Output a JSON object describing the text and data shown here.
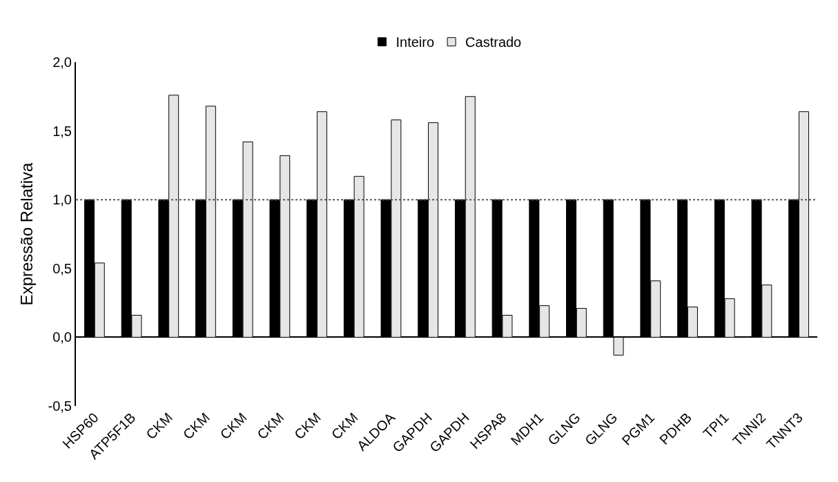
{
  "chart_data": {
    "type": "bar",
    "ylabel": "Expressão Relativa",
    "categories": [
      "HSP60",
      "ATP5F1B",
      "CKM",
      "CKM",
      "CKM",
      "CKM",
      "CKM",
      "CKM",
      "ALDOA",
      "GAPDH",
      "GAPDH",
      "HSPA8",
      "MDH1",
      "GLNG",
      "GLNG",
      "PGM1",
      "PDHB",
      "TPI1",
      "TNNI2",
      "TNNT3"
    ],
    "series": [
      {
        "name": "Inteiro",
        "color": "#000000",
        "values": [
          1,
          1,
          1,
          1,
          1,
          1,
          1,
          1,
          1,
          1,
          1,
          1,
          1,
          1,
          1,
          1,
          1,
          1,
          1,
          1
        ]
      },
      {
        "name": "Castrado",
        "color": "#e6e6e6",
        "values": [
          0.54,
          0.16,
          1.76,
          1.68,
          1.42,
          1.32,
          1.64,
          1.17,
          1.58,
          1.56,
          1.75,
          0.16,
          0.23,
          0.21,
          -0.13,
          0.41,
          0.22,
          0.28,
          0.38,
          1.64
        ]
      }
    ],
    "ylim": [
      -0.5,
      2.0
    ],
    "yticks": [
      {
        "value": -0.5,
        "label": "-0,5"
      },
      {
        "value": 0,
        "label": "0,0"
      },
      {
        "value": 0.5,
        "label": "0,5"
      },
      {
        "value": 1.0,
        "label": "1,0"
      },
      {
        "value": 1.5,
        "label": "1,5"
      },
      {
        "value": 2.0,
        "label": "2,0"
      }
    ],
    "ref_lines": [
      {
        "axis": "y",
        "value": 1.0,
        "color": "#595959",
        "line_style": "dotted"
      }
    ],
    "legend": "top"
  }
}
